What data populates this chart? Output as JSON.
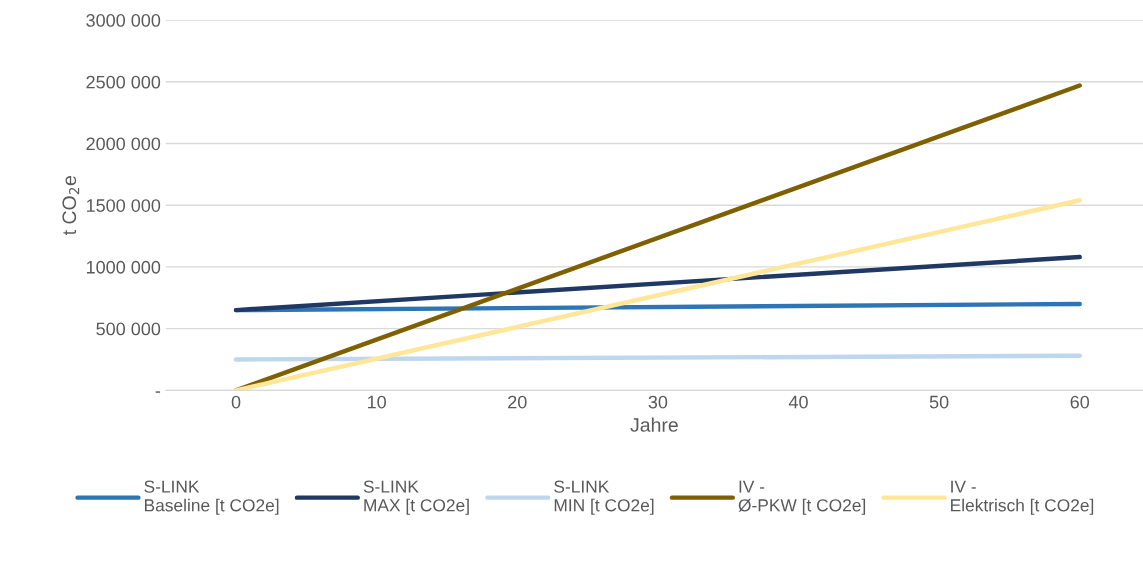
{
  "chart_data": {
    "type": "line",
    "xlabel": "Jahre",
    "ylabel": "t CO$_{2}$e",
    "x": [
      0,
      60
    ],
    "series": [
      {
        "name": "S-LINK\nBaseline [t CO2e]",
        "color": "#2e75b6",
        "values": [
          650000,
          700000
        ]
      },
      {
        "name": "S-LINK\nMAX [t CO2e]",
        "color": "#203864",
        "values": [
          650000,
          1080000
        ]
      },
      {
        "name": "S-LINK\nMIN [t CO2e]",
        "color": "#bdd7ee",
        "values": [
          250000,
          280000
        ]
      },
      {
        "name": "IV -\nØ-PKW [t CO2e]",
        "color": "#7f6000",
        "values": [
          0,
          2470000
        ]
      },
      {
        "name": "IV -\nElektrisch [t CO2e]",
        "color": "#ffe699",
        "values": [
          0,
          1540000
        ]
      }
    ],
    "xlim": [
      -5,
      64.5
    ],
    "xticks": [
      0,
      10,
      20,
      30,
      40,
      50,
      60
    ],
    "ylim": [
      0,
      3000000
    ],
    "yticks": [
      {
        "value": 0,
        "label": "-"
      },
      {
        "value": 500000,
        "label": "500 000"
      },
      {
        "value": 1000000,
        "label": "1000 000"
      },
      {
        "value": 1500000,
        "label": "1500 000"
      },
      {
        "value": 2000000,
        "label": "2000 000"
      },
      {
        "value": 2500000,
        "label": "2500 000"
      },
      {
        "value": 3000000,
        "label": "3000 000"
      }
    ],
    "grid": "y",
    "legend": "bottom",
    "marker": "none",
    "line_style": "solid"
  }
}
